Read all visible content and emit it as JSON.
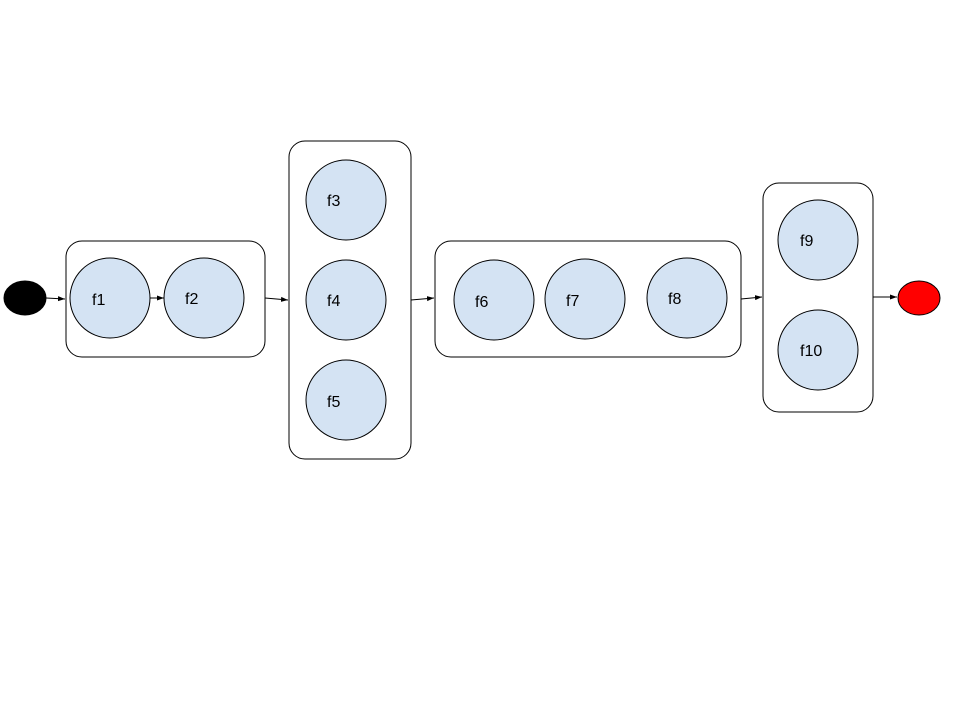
{
  "diagram": {
    "nodes": [
      "f1",
      "f2",
      "f3",
      "f4",
      "f5",
      "f6",
      "f7",
      "f8",
      "f9",
      "f10"
    ],
    "groups": [
      [
        "f1",
        "f2"
      ],
      [
        "f3",
        "f4",
        "f5"
      ],
      [
        "f6",
        "f7",
        "f8"
      ],
      [
        "f9",
        "f10"
      ]
    ],
    "start_color": "#000000",
    "end_color": "#ff0000",
    "node_fill": "#d4e3f3"
  }
}
